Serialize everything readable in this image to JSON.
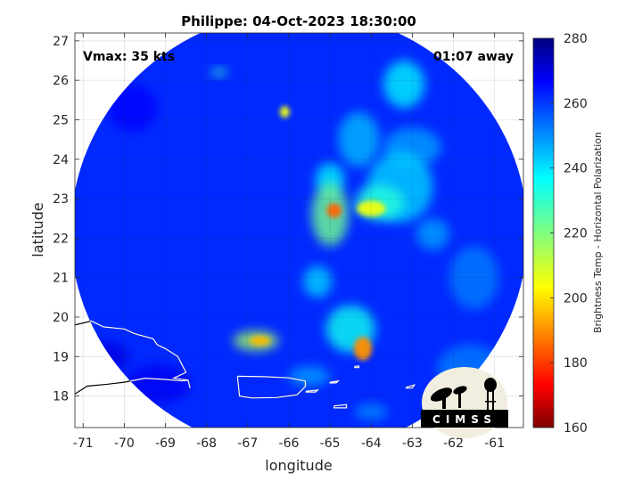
{
  "chart_data": {
    "type": "heatmap",
    "title": "Philippe: 04-Oct-2023 18:30:00",
    "xlabel": "longitude",
    "ylabel": "latitude",
    "xlim": [
      -71.2,
      -60.3
    ],
    "ylim": [
      17.2,
      27.2
    ],
    "x_ticks": [
      -71,
      -70,
      -69,
      -68,
      -67,
      -66,
      -65,
      -64,
      -63,
      -62,
      -61
    ],
    "y_ticks": [
      18,
      19,
      20,
      21,
      22,
      23,
      24,
      25,
      26,
      27
    ],
    "x_tick_labels": [
      "-71",
      "-70",
      "-69",
      "-68",
      "-67",
      "-66",
      "-65",
      "-64",
      "-63",
      "-62",
      "-61"
    ],
    "y_tick_labels": [
      "18",
      "19",
      "20",
      "21",
      "22",
      "23",
      "24",
      "25",
      "26",
      "27"
    ],
    "grid": true,
    "colorbar": {
      "label": "Brightness Temp - Horizontal Polarization",
      "range": [
        160,
        280
      ],
      "ticks": [
        160,
        180,
        200,
        220,
        240,
        260,
        280
      ],
      "tick_labels": [
        "160",
        "180",
        "200",
        "220",
        "240",
        "260",
        "280"
      ],
      "colormap": "jet"
    },
    "background_value": 262,
    "swath": {
      "center_lon": -65.75,
      "center_lat": 22.15,
      "radius_lon": 5.55,
      "radius_lat": 5.6
    },
    "features": [
      {
        "lon": -65.0,
        "lat": 22.6,
        "sx": 0.45,
        "sy": 0.8,
        "value": 222
      },
      {
        "lon": -64.9,
        "lat": 22.7,
        "sx": 0.18,
        "sy": 0.18,
        "value": 185
      },
      {
        "lon": -64.0,
        "lat": 22.75,
        "sx": 0.35,
        "sy": 0.2,
        "value": 205
      },
      {
        "lon": -63.8,
        "lat": 22.9,
        "sx": 0.6,
        "sy": 0.45,
        "value": 232
      },
      {
        "lon": -63.3,
        "lat": 23.3,
        "sx": 0.8,
        "sy": 0.9,
        "value": 242
      },
      {
        "lon": -65.0,
        "lat": 23.5,
        "sx": 0.35,
        "sy": 0.4,
        "value": 238
      },
      {
        "lon": -66.8,
        "lat": 19.4,
        "sx": 0.55,
        "sy": 0.25,
        "value": 215
      },
      {
        "lon": -66.7,
        "lat": 19.4,
        "sx": 0.25,
        "sy": 0.12,
        "value": 195
      },
      {
        "lon": -64.2,
        "lat": 19.2,
        "sx": 0.22,
        "sy": 0.3,
        "value": 190
      },
      {
        "lon": -64.5,
        "lat": 19.7,
        "sx": 0.6,
        "sy": 0.6,
        "value": 235
      },
      {
        "lon": -65.3,
        "lat": 20.9,
        "sx": 0.35,
        "sy": 0.4,
        "value": 242
      },
      {
        "lon": -66.1,
        "lat": 25.2,
        "sx": 0.12,
        "sy": 0.15,
        "value": 205
      },
      {
        "lon": -67.7,
        "lat": 26.2,
        "sx": 0.2,
        "sy": 0.1,
        "value": 230
      },
      {
        "lon": -63.2,
        "lat": 25.9,
        "sx": 0.5,
        "sy": 0.6,
        "value": 238
      },
      {
        "lon": -64.3,
        "lat": 24.5,
        "sx": 0.5,
        "sy": 0.7,
        "value": 245
      },
      {
        "lon": -63.0,
        "lat": 24.3,
        "sx": 0.7,
        "sy": 0.5,
        "value": 248
      },
      {
        "lon": -61.5,
        "lat": 21.0,
        "sx": 0.6,
        "sy": 0.8,
        "value": 252
      },
      {
        "lon": -61.6,
        "lat": 18.7,
        "sx": 0.8,
        "sy": 0.6,
        "value": 252
      },
      {
        "lon": -69.2,
        "lat": 18.3,
        "sx": 0.8,
        "sy": 0.5,
        "value": 268
      },
      {
        "lon": -70.5,
        "lat": 19.0,
        "sx": 0.6,
        "sy": 0.4,
        "value": 270
      },
      {
        "lon": -69.8,
        "lat": 25.3,
        "sx": 0.6,
        "sy": 0.6,
        "value": 267
      },
      {
        "lon": -62.5,
        "lat": 22.1,
        "sx": 0.4,
        "sy": 0.4,
        "value": 248
      },
      {
        "lon": -65.5,
        "lat": 18.5,
        "sx": 0.5,
        "sy": 0.25,
        "value": 248
      },
      {
        "lon": -64.0,
        "lat": 17.6,
        "sx": 0.4,
        "sy": 0.2,
        "value": 250
      }
    ],
    "coastlines": [
      {
        "name": "puerto-rico",
        "points": [
          [
            -67.25,
            18.5
          ],
          [
            -66.6,
            18.49
          ],
          [
            -66.0,
            18.46
          ],
          [
            -65.6,
            18.38
          ],
          [
            -65.6,
            18.24
          ],
          [
            -65.8,
            18.03
          ],
          [
            -66.3,
            17.96
          ],
          [
            -66.9,
            17.95
          ],
          [
            -67.2,
            18.0
          ],
          [
            -67.25,
            18.5
          ]
        ]
      },
      {
        "name": "hispaniola-north",
        "points": [
          [
            -71.2,
            19.8
          ],
          [
            -70.8,
            19.9
          ],
          [
            -70.5,
            19.75
          ],
          [
            -70.0,
            19.7
          ],
          [
            -69.75,
            19.58
          ],
          [
            -69.3,
            19.45
          ],
          [
            -69.2,
            19.3
          ],
          [
            -69.0,
            19.2
          ],
          [
            -68.7,
            19.0
          ],
          [
            -68.5,
            18.6
          ],
          [
            -68.8,
            18.45
          ],
          [
            -68.45,
            18.4
          ],
          [
            -68.4,
            18.2
          ]
        ]
      },
      {
        "name": "hispaniola-south",
        "points": [
          [
            -71.2,
            18.05
          ],
          [
            -70.9,
            18.25
          ],
          [
            -70.4,
            18.3
          ],
          [
            -70.0,
            18.35
          ],
          [
            -69.5,
            18.45
          ],
          [
            -69.0,
            18.42
          ],
          [
            -68.6,
            18.38
          ],
          [
            -68.45,
            18.4
          ]
        ]
      },
      {
        "name": "vieques",
        "points": [
          [
            -65.58,
            18.12
          ],
          [
            -65.3,
            18.15
          ],
          [
            -65.35,
            18.1
          ],
          [
            -65.58,
            18.1
          ],
          [
            -65.58,
            18.12
          ]
        ]
      },
      {
        "name": "virgin-islands",
        "points": [
          [
            -65.0,
            18.35
          ],
          [
            -64.8,
            18.38
          ],
          [
            -64.85,
            18.33
          ],
          [
            -65.0,
            18.33
          ],
          [
            -65.0,
            18.35
          ]
        ]
      },
      {
        "name": "st-croix",
        "points": [
          [
            -64.9,
            17.75
          ],
          [
            -64.6,
            17.78
          ],
          [
            -64.6,
            17.7
          ],
          [
            -64.9,
            17.7
          ],
          [
            -64.9,
            17.75
          ]
        ]
      },
      {
        "name": "anegada",
        "points": [
          [
            -64.4,
            18.75
          ],
          [
            -64.3,
            18.76
          ],
          [
            -64.3,
            18.72
          ],
          [
            -64.4,
            18.72
          ],
          [
            -64.4,
            18.75
          ]
        ]
      },
      {
        "name": "anguilla-area",
        "points": [
          [
            -63.15,
            18.22
          ],
          [
            -62.95,
            18.28
          ],
          [
            -63.0,
            18.2
          ],
          [
            -63.15,
            18.2
          ],
          [
            -63.15,
            18.22
          ]
        ]
      }
    ],
    "annotations": {
      "vmax": "Vmax: 35 kts",
      "time_away": "01:07 away"
    }
  },
  "logo": {
    "text": "CIMSS"
  }
}
